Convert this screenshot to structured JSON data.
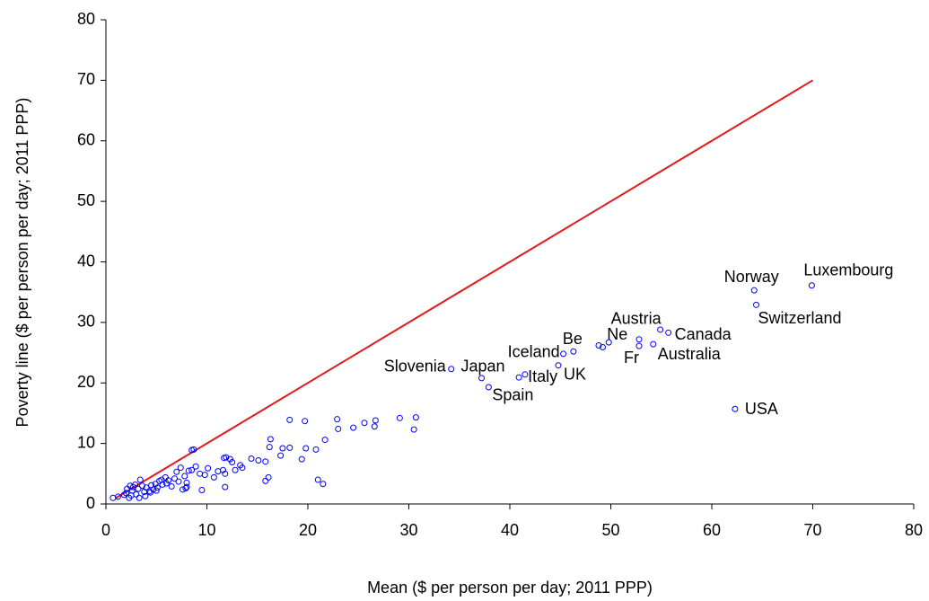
{
  "chart_data": {
    "type": "scatter",
    "x_label": "Mean ($ per person per day; 2011 PPP)",
    "y_label": "Poverty line ($ per person per day; 2011 PPP)",
    "xlim": [
      0,
      80
    ],
    "ylim": [
      0,
      80
    ],
    "xticks": [
      0,
      10,
      20,
      30,
      40,
      50,
      60,
      70,
      80
    ],
    "yticks": [
      0,
      10,
      20,
      30,
      40,
      50,
      60,
      70,
      80
    ],
    "grid": false,
    "marker_color": "#0000ff",
    "reference_line": {
      "color": "#e31a1c",
      "x": [
        1,
        70
      ],
      "values": [
        1,
        70
      ]
    },
    "labeled_points": {
      "labels": [
        "Luxembourg",
        "Norway",
        "Switzerland",
        "USA",
        "Canada",
        "Austria",
        "Australia",
        "Fr",
        "Ne",
        "Be",
        "Iceland",
        "UK",
        "Italy",
        "Japan",
        "Spain",
        "Slovenia"
      ],
      "x": [
        69.9,
        64.2,
        64.4,
        62.3,
        55.7,
        54.9,
        54.2,
        52.8,
        49.8,
        46.3,
        45.3,
        44.8,
        40.9,
        37.2,
        37.9,
        34.2
      ],
      "values": [
        36.1,
        35.3,
        32.9,
        15.7,
        28.3,
        28.8,
        26.4,
        26.1,
        26.7,
        25.2,
        24.8,
        22.9,
        20.9,
        20.8,
        19.3,
        22.3
      ]
    },
    "points": {
      "x": [
        49.2,
        48.8,
        52.8,
        41.5,
        18.2,
        19.7,
        22.9,
        29.1,
        30.7,
        30.5,
        26.7,
        26.6,
        25.6,
        24.5,
        23.0,
        21.7,
        20.8,
        19.8,
        19.4,
        18.2,
        17.5,
        17.3,
        16.3,
        16.2,
        16.1,
        15.8,
        15.8,
        15.1,
        14.4,
        13.5,
        13.3,
        12.8,
        12.5,
        12.3,
        11.9,
        11.7,
        11.8,
        11.8,
        11.6,
        11.1,
        10.7,
        10.1,
        9.8,
        9.5,
        9.3,
        8.9,
        8.7,
        8.5,
        8.5,
        8.2,
        8.0,
        7.8,
        7.6,
        7.4,
        7.0,
        6.8,
        6.5,
        6.2,
        5.9,
        5.6,
        5.3,
        5.1,
        4.9,
        4.7,
        4.5,
        4.3,
        4.0,
        3.8,
        3.6,
        3.4,
        3.2,
        3.0,
        2.9,
        2.7,
        2.6,
        2.5,
        2.4,
        2.3,
        2.1,
        2.0,
        1.8,
        1.2,
        0.7,
        3.3,
        3.9,
        4.4,
        5.0,
        5.5,
        6.0,
        7.2,
        8.0,
        21.0,
        21.5,
        7.9
      ],
      "values": [
        25.9,
        26.2,
        27.2,
        21.4,
        13.9,
        13.7,
        14.0,
        14.2,
        14.3,
        12.3,
        13.8,
        12.8,
        13.4,
        12.6,
        12.4,
        10.6,
        9.0,
        9.2,
        7.4,
        9.3,
        9.2,
        8.0,
        10.7,
        9.4,
        4.4,
        3.8,
        7.0,
        7.2,
        7.5,
        6.0,
        6.4,
        5.6,
        6.9,
        7.4,
        7.7,
        7.6,
        2.8,
        5.0,
        5.6,
        5.4,
        4.4,
        5.9,
        4.8,
        2.3,
        5.0,
        6.2,
        9.0,
        8.9,
        5.6,
        5.5,
        2.8,
        4.6,
        2.4,
        6.0,
        5.3,
        4.2,
        2.9,
        3.9,
        4.4,
        3.2,
        3.8,
        2.7,
        3.3,
        2.4,
        3.1,
        2.1,
        2.7,
        2.0,
        3.0,
        4.0,
        2.5,
        1.6,
        3.2,
        2.8,
        2.2,
        1.4,
        3.0,
        1.0,
        2.5,
        1.8,
        1.5,
        1.2,
        1.0,
        1.0,
        1.3,
        1.9,
        2.2,
        4.0,
        3.4,
        3.7,
        3.5,
        4.0,
        3.3,
        2.6
      ]
    }
  }
}
